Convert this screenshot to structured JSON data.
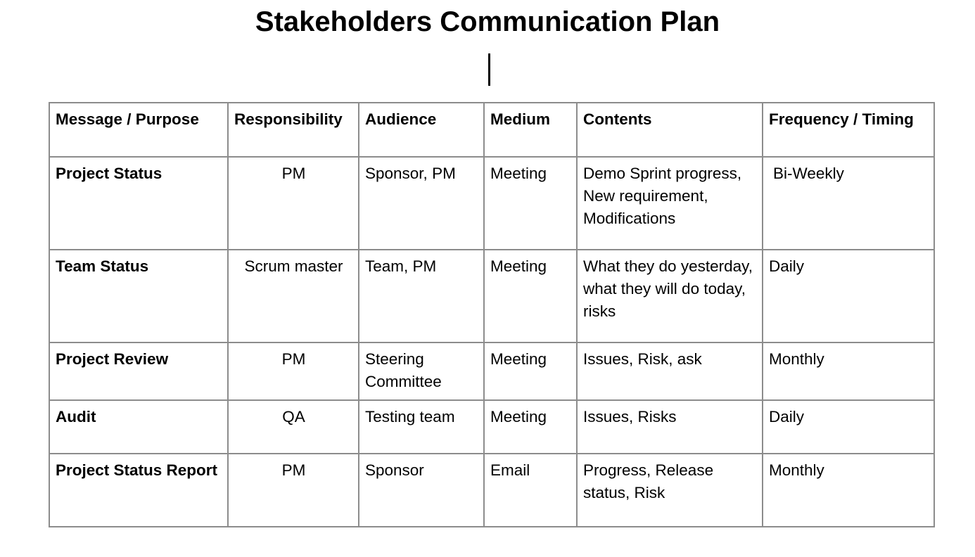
{
  "document": {
    "title": "Stakeholders Communication Plan"
  },
  "table": {
    "headers": [
      "Message / Purpose",
      "Responsibility",
      "Audience",
      "Medium",
      "Contents",
      "Frequency / Timing"
    ],
    "rows": [
      [
        "Project Status",
        "PM",
        "Sponsor, PM",
        "Meeting",
        "Demo Sprint progress, New requirement, Modifications",
        "Bi-Weekly"
      ],
      [
        "Team Status",
        "Scrum master",
        "Team, PM",
        "Meeting",
        "What they do yesterday, what they will do today, risks",
        "Daily"
      ],
      [
        "Project Review",
        "PM",
        "Steering Committee",
        "Meeting",
        "Issues, Risk, ask",
        "Monthly"
      ],
      [
        "Audit",
        "QA",
        "Testing team",
        "Meeting",
        "Issues, Risks",
        "Daily"
      ],
      [
        "Project Status Report",
        "PM",
        "Sponsor",
        "Email",
        "Progress, Release status, Risk",
        "Monthly"
      ]
    ]
  }
}
